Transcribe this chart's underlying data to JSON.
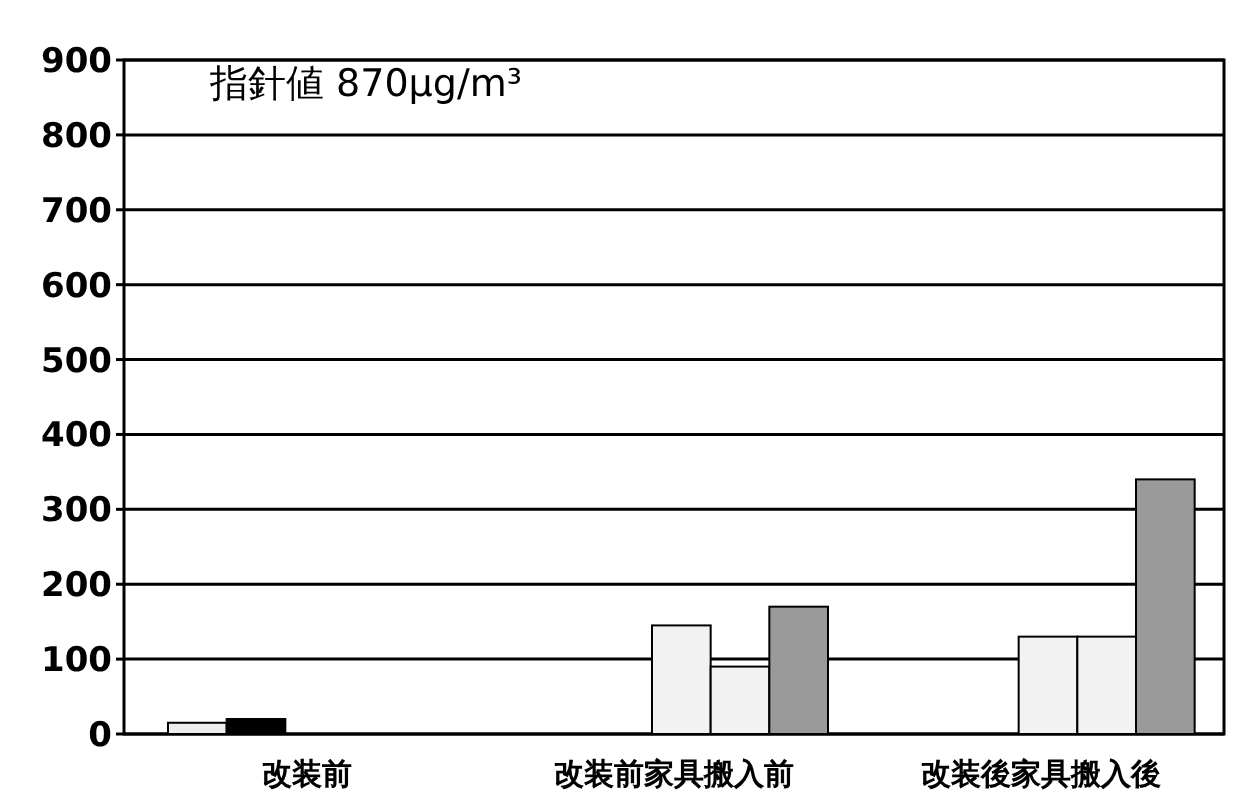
{
  "chart_data": {
    "type": "bar",
    "categories": [
      "改装前",
      "改装前家具搬入前",
      "改装後家具搬入後"
    ],
    "series": [
      {
        "color": "#eeeeee",
        "values": [
          15,
          0,
          0
        ]
      },
      {
        "color": "#000000",
        "values": [
          20,
          0,
          0
        ]
      },
      {
        "color": "#f2f2f2",
        "values": [
          0,
          145,
          130
        ]
      },
      {
        "color": "#f2f2f2",
        "values": [
          0,
          90,
          130
        ]
      },
      {
        "color": "#9a9a9a",
        "values": [
          0,
          170,
          340
        ]
      }
    ],
    "ylim": [
      0,
      900
    ],
    "yticks": [
      0,
      100,
      200,
      300,
      400,
      500,
      600,
      700,
      800,
      900
    ],
    "grid": "y",
    "annotations": [
      "指針値 870μg/m³"
    ]
  }
}
